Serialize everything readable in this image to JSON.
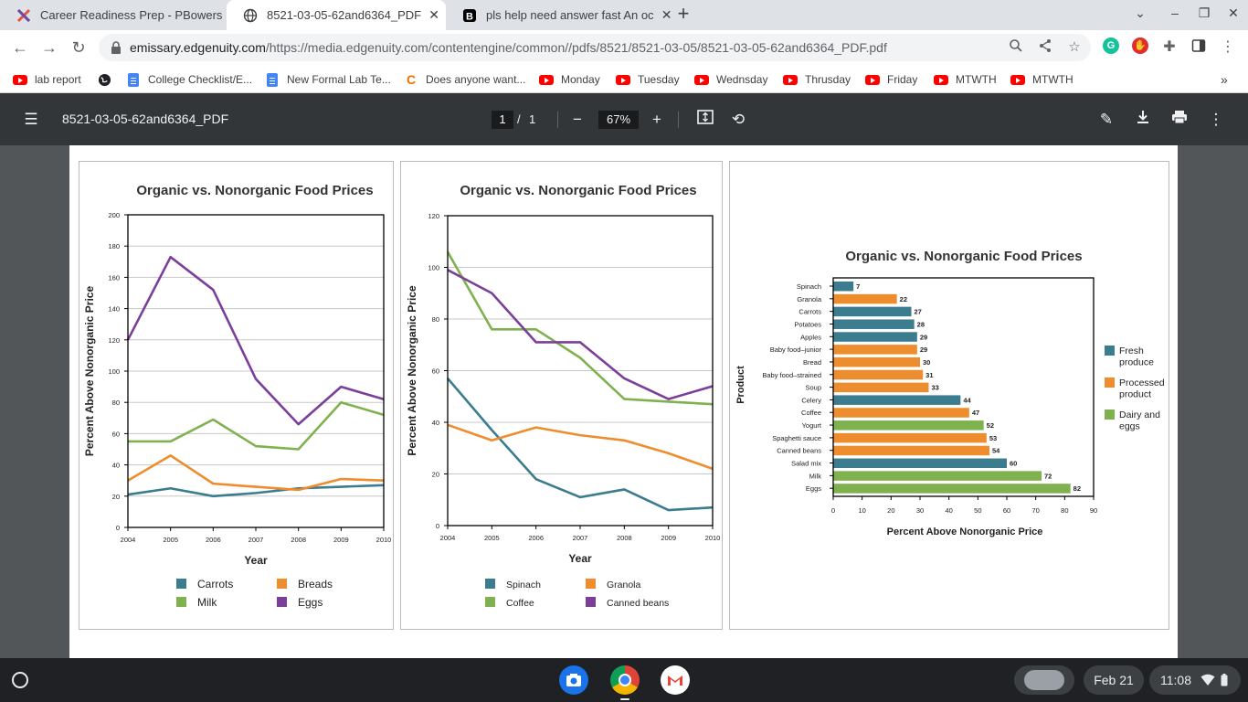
{
  "tabs": [
    {
      "title": "Career Readiness Prep - PBowers",
      "favicon": "edgenuity-icon",
      "active": false
    },
    {
      "title": "8521-03-05-62and6364_PDF",
      "favicon": "globe-icon",
      "active": true
    },
    {
      "title": "pls help need answer fast An oc",
      "favicon": "brainly-icon",
      "active": false
    }
  ],
  "address_bar": {
    "host": "emissary.edgenuity.com",
    "path": "/https://media.edgenuity.com/contentengine/common//pdfs/8521/8521-03-05/8521-03-05-62and6364_PDF.pdf"
  },
  "bookmarks": [
    {
      "label": "lab report",
      "icon": "youtube-icon"
    },
    {
      "label": "",
      "icon": "globe-icon"
    },
    {
      "label": "College Checklist/E...",
      "icon": "docs-icon"
    },
    {
      "label": "New Formal Lab Te...",
      "icon": "docs-icon"
    },
    {
      "label": "Does anyone want...",
      "icon": "chegg-icon"
    },
    {
      "label": "Monday",
      "icon": "youtube-icon"
    },
    {
      "label": "Tuesday",
      "icon": "youtube-icon"
    },
    {
      "label": "Wednsday",
      "icon": "youtube-icon"
    },
    {
      "label": "Thrusday",
      "icon": "youtube-icon"
    },
    {
      "label": "Friday",
      "icon": "youtube-icon"
    },
    {
      "label": "MTWTH",
      "icon": "youtube-icon"
    },
    {
      "label": "MTWTH",
      "icon": "youtube-icon"
    }
  ],
  "pdf_toolbar": {
    "title": "8521-03-05-62and6364_PDF",
    "page_current": "1",
    "page_separator": "/",
    "page_total": "1",
    "zoom": "67%"
  },
  "colors": {
    "teal": "#3b7c8e",
    "orange": "#ee8d2e",
    "green": "#7fb24e",
    "purple": "#7b3f9b"
  },
  "chart_data": [
    {
      "type": "line",
      "title": "Organic vs. Nonorganic Food Prices",
      "xlabel": "Year",
      "ylabel": "Percent Above Nonorganic Price",
      "x": [
        2004,
        2005,
        2006,
        2007,
        2008,
        2009,
        2010
      ],
      "ylim": [
        0,
        200
      ],
      "yticks": [
        0,
        20,
        40,
        60,
        80,
        100,
        120,
        140,
        160,
        180,
        200
      ],
      "series": [
        {
          "name": "Carrots",
          "color": "#3b7c8e",
          "values": [
            21,
            25,
            20,
            22,
            25,
            26,
            27
          ]
        },
        {
          "name": "Breads",
          "color": "#ee8d2e",
          "values": [
            30,
            46,
            28,
            26,
            24,
            31,
            30
          ]
        },
        {
          "name": "Milk",
          "color": "#7fb24e",
          "values": [
            55,
            55,
            69,
            52,
            50,
            80,
            72
          ]
        },
        {
          "name": "Eggs",
          "color": "#7b3f9b",
          "values": [
            120,
            173,
            152,
            95,
            66,
            90,
            82
          ]
        }
      ]
    },
    {
      "type": "line",
      "title": "Organic vs. Nonorganic Food Prices",
      "xlabel": "Year",
      "ylabel": "Percent Above Nonorganic Price",
      "x": [
        2004,
        2005,
        2006,
        2007,
        2008,
        2009,
        2010
      ],
      "ylim": [
        0,
        120
      ],
      "yticks": [
        0,
        20,
        40,
        60,
        80,
        100,
        120
      ],
      "series": [
        {
          "name": "Spinach",
          "color": "#3b7c8e",
          "values": [
            57,
            37,
            18,
            11,
            14,
            6,
            7
          ]
        },
        {
          "name": "Granola",
          "color": "#ee8d2e",
          "values": [
            39,
            33,
            38,
            35,
            33,
            28,
            22
          ]
        },
        {
          "name": "Coffee",
          "color": "#7fb24e",
          "values": [
            106,
            76,
            76,
            65,
            49,
            48,
            47
          ]
        },
        {
          "name": "Canned beans",
          "color": "#7b3f9b",
          "values": [
            99,
            90,
            71,
            71,
            57,
            49,
            54
          ]
        }
      ]
    },
    {
      "type": "bar",
      "orientation": "horizontal",
      "title": "Organic vs. Nonorganic Food Prices",
      "xlabel": "Percent Above Nonorganic Price",
      "ylabel": "Product",
      "xlim": [
        0,
        90
      ],
      "xticks": [
        0,
        10,
        20,
        30,
        40,
        50,
        60,
        70,
        80,
        90
      ],
      "legend": [
        {
          "name": "Fresh produce",
          "color": "#3b7c8e"
        },
        {
          "name": "Processed product",
          "color": "#ee8d2e"
        },
        {
          "name": "Dairy and eggs",
          "color": "#7fb24e"
        }
      ],
      "bars": [
        {
          "label": "Spinach",
          "value": 7,
          "group": 0
        },
        {
          "label": "Granola",
          "value": 22,
          "group": 1
        },
        {
          "label": "Carrots",
          "value": 27,
          "group": 0
        },
        {
          "label": "Potatoes",
          "value": 28,
          "group": 0
        },
        {
          "label": "Apples",
          "value": 29,
          "group": 0
        },
        {
          "label": "Baby food–junior",
          "value": 29,
          "group": 1
        },
        {
          "label": "Bread",
          "value": 30,
          "group": 1
        },
        {
          "label": "Baby food–strained",
          "value": 31,
          "group": 1
        },
        {
          "label": "Soup",
          "value": 33,
          "group": 1
        },
        {
          "label": "Celery",
          "value": 44,
          "group": 0
        },
        {
          "label": "Coffee",
          "value": 47,
          "group": 1
        },
        {
          "label": "Yogurt",
          "value": 52,
          "group": 2
        },
        {
          "label": "Spaghetti sauce",
          "value": 53,
          "group": 1
        },
        {
          "label": "Canned beans",
          "value": 54,
          "group": 1
        },
        {
          "label": "Salad mix",
          "value": 60,
          "group": 0
        },
        {
          "label": "Milk",
          "value": 72,
          "group": 2
        },
        {
          "label": "Eggs",
          "value": 82,
          "group": 2
        }
      ]
    }
  ],
  "taskbar": {
    "date": "Feb 21",
    "time": "11:08"
  }
}
